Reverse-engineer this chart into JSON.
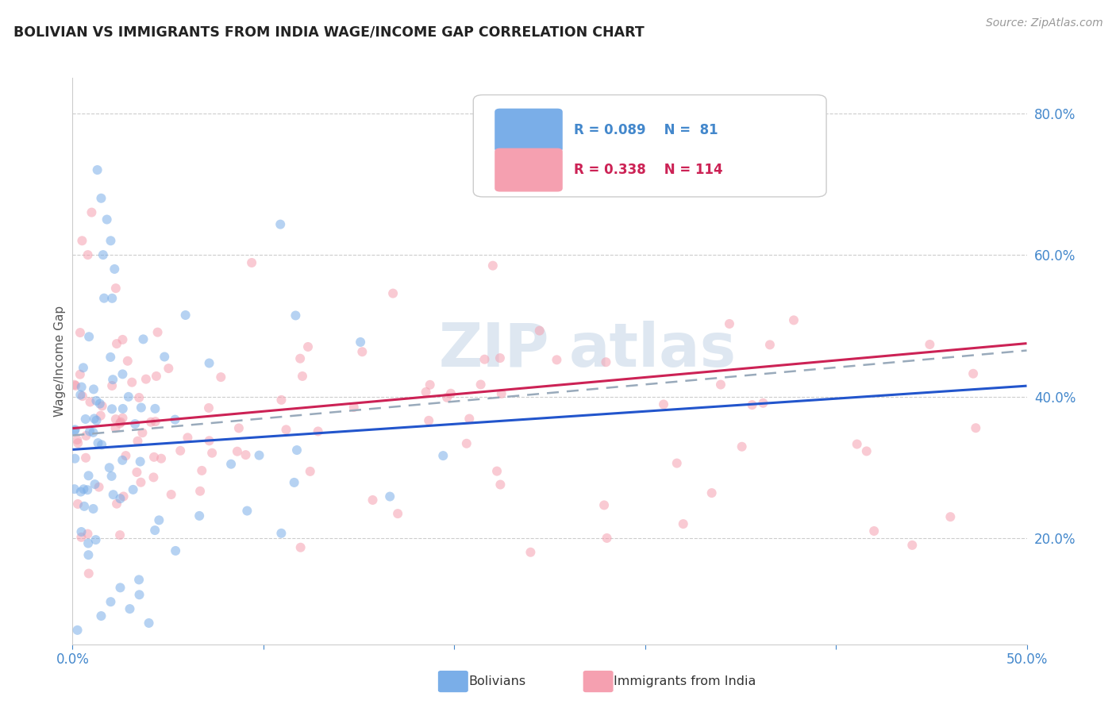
{
  "title": "BOLIVIAN VS IMMIGRANTS FROM INDIA WAGE/INCOME GAP CORRELATION CHART",
  "source": "Source: ZipAtlas.com",
  "ylabel": "Wage/Income Gap",
  "xlim": [
    0.0,
    0.5
  ],
  "ylim": [
    0.05,
    0.85
  ],
  "xtick_positions": [
    0.0,
    0.1,
    0.2,
    0.3,
    0.4,
    0.5
  ],
  "xticklabels": [
    "0.0%",
    "",
    "",
    "",
    "",
    "50.0%"
  ],
  "yticks_right": [
    0.2,
    0.4,
    0.6,
    0.8
  ],
  "ytick_labels_right": [
    "20.0%",
    "40.0%",
    "60.0%",
    "80.0%"
  ],
  "gridline_y": [
    0.2,
    0.4,
    0.6,
    0.8
  ],
  "background_color": "#ffffff",
  "blue_color": "#7aaee8",
  "pink_color": "#f5a0b0",
  "blue_line_color": "#2255cc",
  "pink_line_color": "#cc2255",
  "dashed_line_color": "#99aabb",
  "axis_color": "#4488cc",
  "legend_R_blue": "R = 0.089",
  "legend_N_blue": "N =  81",
  "legend_R_pink": "R = 0.338",
  "legend_N_pink": "N = 114",
  "blue_trend_x": [
    0.0,
    0.5
  ],
  "blue_trend_y": [
    0.325,
    0.415
  ],
  "pink_trend_x": [
    0.0,
    0.5
  ],
  "pink_trend_y": [
    0.355,
    0.475
  ],
  "dashed_trend_x": [
    0.0,
    0.5
  ],
  "dashed_trend_y": [
    0.345,
    0.465
  ]
}
